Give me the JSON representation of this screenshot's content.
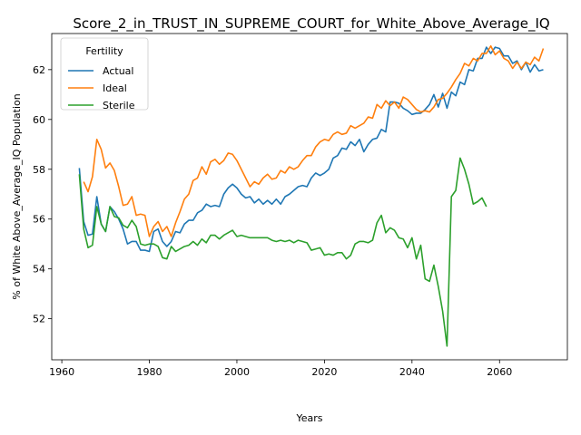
{
  "chart_data": {
    "type": "line",
    "title": "Score_2_in_TRUST_IN_SUPREME_COURT_for_White_Above_Average_IQ",
    "xlabel": "Years",
    "ylabel": "% of White Above_Average_IQ Population",
    "xlim": [
      1957.7,
      2075.5
    ],
    "ylim": [
      50.35,
      63.45
    ],
    "xticks": [
      1960,
      1980,
      2000,
      2020,
      2040,
      2060
    ],
    "yticks": [
      52,
      54,
      56,
      58,
      60,
      62
    ],
    "grid": false,
    "legend": {
      "title": "Fertility",
      "placement": "top-left"
    },
    "series": [
      {
        "name": "Actual",
        "color": "#1f77b4",
        "x": [
          1964,
          1965,
          1966,
          1967,
          1968,
          1969,
          1970,
          1971,
          1972,
          1973,
          1974,
          1975,
          1976,
          1977,
          1978,
          1979,
          1980,
          1981,
          1982,
          1983,
          1984,
          1985,
          1986,
          1987,
          1988,
          1989,
          1990,
          1991,
          1992,
          1993,
          1994,
          1995,
          1996,
          1997,
          1998,
          1999,
          2000,
          2001,
          2002,
          2003,
          2004,
          2005,
          2006,
          2007,
          2008,
          2009,
          2010,
          2011,
          2012,
          2013,
          2014,
          2015,
          2016,
          2017,
          2018,
          2019,
          2020,
          2021,
          2022,
          2023,
          2024,
          2025,
          2026,
          2027,
          2028,
          2029,
          2030,
          2031,
          2032,
          2033,
          2034,
          2035,
          2036,
          2037,
          2038,
          2039,
          2040,
          2041,
          2042,
          2043,
          2044,
          2045,
          2046,
          2047,
          2048,
          2049,
          2050,
          2051,
          2052,
          2053,
          2054,
          2055,
          2056,
          2057,
          2058,
          2059,
          2060,
          2061,
          2062,
          2063,
          2064,
          2065,
          2066,
          2067,
          2068,
          2069,
          2070
        ],
        "y": [
          58.05,
          55.9,
          55.35,
          55.4,
          56.9,
          55.8,
          55.5,
          56.5,
          56.3,
          56.0,
          55.6,
          55.0,
          55.1,
          55.1,
          54.75,
          54.75,
          54.7,
          55.5,
          55.6,
          55.1,
          54.9,
          55.1,
          55.5,
          55.45,
          55.8,
          55.95,
          55.95,
          56.25,
          56.35,
          56.6,
          56.5,
          56.55,
          56.5,
          57.0,
          57.25,
          57.4,
          57.25,
          57.0,
          56.85,
          56.9,
          56.65,
          56.8,
          56.6,
          56.75,
          56.6,
          56.8,
          56.6,
          56.9,
          57.0,
          57.15,
          57.3,
          57.35,
          57.3,
          57.65,
          57.85,
          57.75,
          57.85,
          58.0,
          58.45,
          58.55,
          58.85,
          58.8,
          59.1,
          58.95,
          59.2,
          58.7,
          59.0,
          59.2,
          59.25,
          59.6,
          59.5,
          60.7,
          60.7,
          60.65,
          60.45,
          60.35,
          60.2,
          60.25,
          60.25,
          60.4,
          60.6,
          61.0,
          60.5,
          61.05,
          60.45,
          61.1,
          60.95,
          61.5,
          61.4,
          62.0,
          61.95,
          62.45,
          62.45,
          62.9,
          62.65,
          62.9,
          62.85,
          62.55,
          62.55,
          62.25,
          62.35,
          62.0,
          62.3,
          61.9,
          62.2,
          61.95,
          62.0
        ],
        "y_end_note": "series ends at 2070"
      },
      {
        "name": "Ideal",
        "color": "#ff7f0e",
        "x": [
          1965,
          1966,
          1967,
          1968,
          1969,
          1970,
          1971,
          1972,
          1973,
          1974,
          1975,
          1976,
          1977,
          1978,
          1979,
          1980,
          1981,
          1982,
          1983,
          1984,
          1985,
          1986,
          1987,
          1988,
          1989,
          1990,
          1991,
          1992,
          1993,
          1994,
          1995,
          1996,
          1997,
          1998,
          1999,
          2000,
          2001,
          2002,
          2003,
          2004,
          2005,
          2006,
          2007,
          2008,
          2009,
          2010,
          2011,
          2012,
          2013,
          2014,
          2015,
          2016,
          2017,
          2018,
          2019,
          2020,
          2021,
          2022,
          2023,
          2024,
          2025,
          2026,
          2027,
          2028,
          2029,
          2030,
          2031,
          2032,
          2033,
          2034,
          2035,
          2036,
          2037,
          2038,
          2039,
          2040,
          2041,
          2042,
          2043,
          2044,
          2045,
          2046,
          2047,
          2048,
          2049,
          2050,
          2051,
          2052,
          2053,
          2054,
          2055,
          2056,
          2057,
          2058,
          2059,
          2060,
          2061,
          2062,
          2063,
          2064,
          2065,
          2066,
          2067,
          2068,
          2069,
          2070
        ],
        "y": [
          57.5,
          57.1,
          57.7,
          59.2,
          58.8,
          58.05,
          58.25,
          57.95,
          57.3,
          56.55,
          56.6,
          56.9,
          56.15,
          56.2,
          56.15,
          55.3,
          55.7,
          55.9,
          55.5,
          55.7,
          55.3,
          55.85,
          56.3,
          56.8,
          57.0,
          57.55,
          57.65,
          58.1,
          57.8,
          58.3,
          58.4,
          58.2,
          58.35,
          58.65,
          58.6,
          58.35,
          58.0,
          57.65,
          57.3,
          57.5,
          57.4,
          57.65,
          57.8,
          57.6,
          57.65,
          57.95,
          57.85,
          58.1,
          58.0,
          58.1,
          58.35,
          58.55,
          58.55,
          58.9,
          59.1,
          59.2,
          59.15,
          59.4,
          59.5,
          59.4,
          59.45,
          59.75,
          59.65,
          59.75,
          59.85,
          60.1,
          60.05,
          60.6,
          60.45,
          60.75,
          60.55,
          60.7,
          60.45,
          60.9,
          60.8,
          60.6,
          60.4,
          60.3,
          60.35,
          60.3,
          60.5,
          60.8,
          60.85,
          61.05,
          61.3,
          61.6,
          61.85,
          62.25,
          62.15,
          62.45,
          62.35,
          62.65,
          62.65,
          62.95,
          62.6,
          62.75,
          62.45,
          62.35,
          62.05,
          62.3,
          62.05,
          62.3,
          62.2,
          62.5,
          62.35,
          62.85
        ]
      },
      {
        "name": "Sterile",
        "color": "#2ca02c",
        "x": [
          1964,
          1965,
          1966,
          1967,
          1968,
          1969,
          1970,
          1971,
          1972,
          1973,
          1974,
          1975,
          1976,
          1977,
          1978,
          1979,
          1980,
          1981,
          1982,
          1983,
          1984,
          1985,
          1986,
          1987,
          1988,
          1989,
          1990,
          1991,
          1992,
          1993,
          1994,
          1995,
          1996,
          1997,
          1998,
          1999,
          2000,
          2001,
          2002,
          2003,
          2004,
          2005,
          2006,
          2007,
          2008,
          2009,
          2010,
          2011,
          2012,
          2013,
          2014,
          2015,
          2016,
          2017,
          2018,
          2019,
          2020,
          2021,
          2022,
          2023,
          2024,
          2025,
          2026,
          2027,
          2028,
          2029,
          2030,
          2031,
          2032,
          2033,
          2034,
          2035,
          2036,
          2037,
          2038,
          2039,
          2040,
          2041,
          2042,
          2043,
          2044,
          2045,
          2046,
          2047,
          2048,
          2049,
          2050,
          2051,
          2052,
          2053,
          2054,
          2055,
          2056,
          2057
        ],
        "y": [
          57.8,
          55.6,
          54.85,
          54.95,
          56.5,
          55.8,
          55.5,
          56.5,
          56.1,
          56.05,
          55.75,
          55.65,
          55.95,
          55.7,
          55.0,
          54.95,
          55.0,
          55.0,
          54.9,
          54.45,
          54.4,
          54.9,
          54.7,
          54.8,
          54.9,
          54.95,
          55.1,
          54.95,
          55.2,
          55.05,
          55.35,
          55.35,
          55.2,
          55.35,
          55.45,
          55.55,
          55.3,
          55.35,
          55.3,
          55.25,
          55.25,
          55.25,
          55.25,
          55.25,
          55.15,
          55.1,
          55.15,
          55.1,
          55.15,
          55.05,
          55.15,
          55.1,
          55.05,
          54.75,
          54.8,
          54.85,
          54.55,
          54.6,
          54.55,
          54.65,
          54.65,
          54.4,
          54.55,
          55.0,
          55.1,
          55.1,
          55.05,
          55.15,
          55.85,
          56.15,
          55.45,
          55.65,
          55.55,
          55.25,
          55.2,
          54.85,
          55.25,
          54.4,
          54.95,
          53.6,
          53.5,
          54.15,
          53.3,
          52.3,
          50.9,
          56.9,
          57.15,
          58.45,
          58.0,
          57.4,
          56.6,
          56.7,
          56.85,
          56.5
        ]
      }
    ]
  }
}
